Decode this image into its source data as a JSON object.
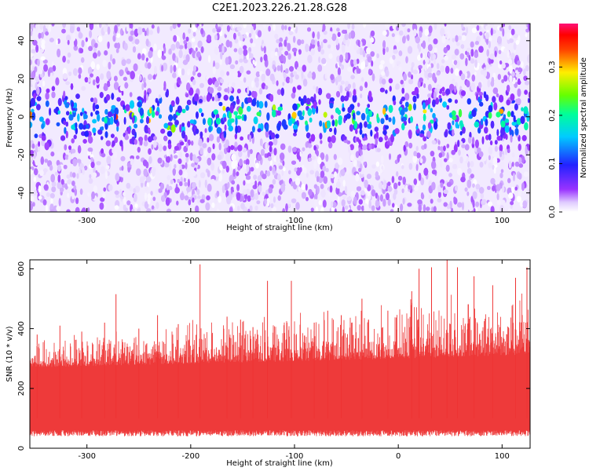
{
  "chart_data": [
    {
      "type": "heatmap",
      "title": "C2E1.2023.226.21.28.G28",
      "xlabel": "Height of straight line (km)",
      "ylabel": "Frequency (Hz)",
      "xlim": [
        -355,
        127
      ],
      "ylim": [
        -50,
        49
      ],
      "xticks": [
        -300,
        -200,
        -100,
        0,
        100
      ],
      "yticks": [
        -40,
        -20,
        0,
        20,
        40
      ],
      "colorbar": {
        "label": "Normalized spectral amplitude",
        "range": [
          0.0,
          0.39
        ],
        "ticks": [
          "0.0",
          "0.1",
          "0.2",
          "0.3"
        ],
        "tick_values": [
          0.0,
          0.1,
          0.2,
          0.3
        ],
        "colormap": "rainbow (white-lavender-violet-blue-cyan-green-yellow-red-magenta)"
      },
      "pattern": "noise band centered at 0 Hz, roughly ±10 Hz wide, amplitude peaking around 0.1-0.2 with sparse spots up to ~0.3; background amplitude 0.0-0.05 elsewhere",
      "grid": false
    },
    {
      "type": "area",
      "title": "",
      "xlabel": "Height of straight line (km)",
      "ylabel": "SNR (10 * v/v)",
      "xlim": [
        -355,
        127
      ],
      "ylim": [
        0,
        630
      ],
      "xticks": [
        -300,
        -200,
        -100,
        0,
        100
      ],
      "yticks": [
        0,
        200,
        400,
        600
      ],
      "color": "#ee3333",
      "baseline_band": [
        50,
        270
      ],
      "peaks": [
        {
          "x": -348,
          "y": 380
        },
        {
          "x": -326,
          "y": 410
        },
        {
          "x": -305,
          "y": 390
        },
        {
          "x": -283,
          "y": 420
        },
        {
          "x": -272,
          "y": 515
        },
        {
          "x": -250,
          "y": 400
        },
        {
          "x": -232,
          "y": 445
        },
        {
          "x": -212,
          "y": 415
        },
        {
          "x": -191,
          "y": 615
        },
        {
          "x": -165,
          "y": 440
        },
        {
          "x": -152,
          "y": 430
        },
        {
          "x": -140,
          "y": 405
        },
        {
          "x": -126,
          "y": 560
        },
        {
          "x": -103,
          "y": 560
        },
        {
          "x": -81,
          "y": 420
        },
        {
          "x": -68,
          "y": 460
        },
        {
          "x": -55,
          "y": 445
        },
        {
          "x": -35,
          "y": 500
        },
        {
          "x": -10,
          "y": 460
        },
        {
          "x": 13,
          "y": 525
        },
        {
          "x": 20,
          "y": 600
        },
        {
          "x": 32,
          "y": 605
        },
        {
          "x": 47,
          "y": 630
        },
        {
          "x": 57,
          "y": 605
        },
        {
          "x": 73,
          "y": 575
        },
        {
          "x": 91,
          "y": 545
        },
        {
          "x": 113,
          "y": 570
        },
        {
          "x": 124,
          "y": 605
        }
      ],
      "grid": false
    }
  ]
}
